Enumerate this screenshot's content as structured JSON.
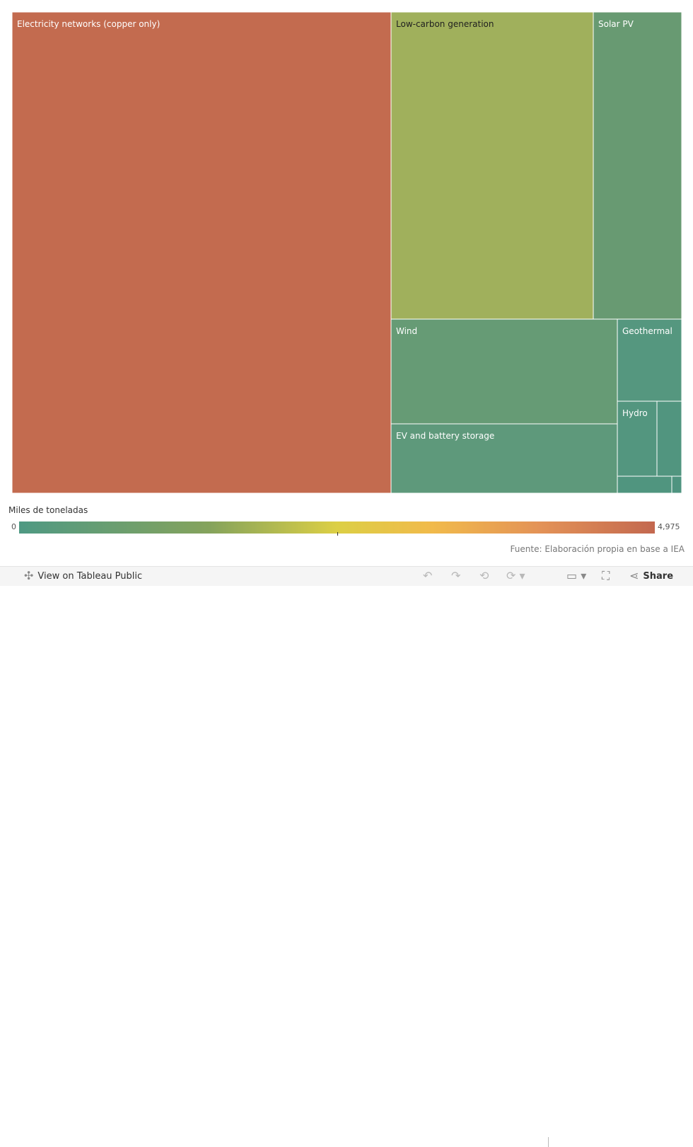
{
  "chart_data": {
    "type": "treemap",
    "value_unit": "Miles de toneladas",
    "color_scale": {
      "min": 0,
      "max": 4975,
      "min_label": "0",
      "max_label": "4,975",
      "colors": [
        "#4f9983",
        "#85a35c",
        "#dccf45",
        "#f1ba4b",
        "#e39257",
        "#c3684f"
      ]
    },
    "tiles": [
      {
        "label": "Electricity networks (copper only)",
        "color": "#c36b4f"
      },
      {
        "label": "Low-carbon generation",
        "color": "#a0b05c"
      },
      {
        "label": "Solar PV",
        "color": "#689a72"
      },
      {
        "label": "Wind",
        "color": "#669b75"
      },
      {
        "label": "EV and battery storage",
        "color": "#5e997b"
      },
      {
        "label": "Geothermal",
        "color": "#55977f"
      },
      {
        "label": "Hydro",
        "color": "#53967f"
      },
      {
        "label": "",
        "color": "#51957f"
      },
      {
        "label": "",
        "color": "#50957f"
      },
      {
        "label": "",
        "color": "#4f9480"
      }
    ]
  },
  "legend": {
    "title": "Miles de toneladas",
    "min_label": "0",
    "max_label": "4,975"
  },
  "source": "Fuente: Elaboración propia en base a IEA",
  "toolbar": {
    "view_label": "View on Tableau Public",
    "share_label": "Share",
    "icons": [
      "tableau-icon",
      "undo-icon",
      "redo-icon",
      "revert-icon",
      "refresh-icon",
      "download-icon",
      "fullscreen-icon",
      "share-icon"
    ]
  }
}
